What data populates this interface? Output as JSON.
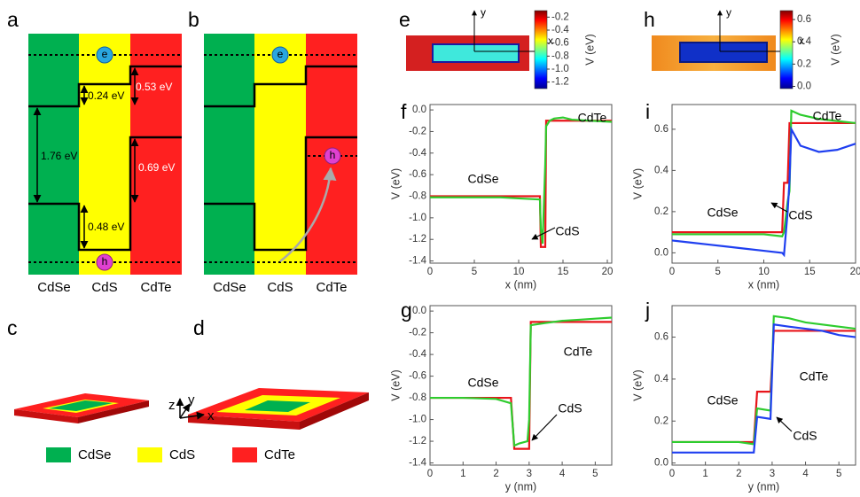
{
  "panel_labels": [
    "a",
    "b",
    "c",
    "d",
    "e",
    "f",
    "g",
    "h",
    "i",
    "j"
  ],
  "band_diagrams": {
    "materials": [
      "CdSe",
      "CdS",
      "CdTe"
    ],
    "electron": "e",
    "hole": "h",
    "energies": [
      "0.24 eV",
      "0.53 eV",
      "1.76 eV",
      "0.69 eV",
      "0.48 eV"
    ]
  },
  "schematic": {
    "axes": [
      "z",
      "y",
      "x"
    ],
    "legend": [
      {
        "label": "CdSe",
        "color": "#00b050"
      },
      {
        "label": "CdS",
        "color": "#ffff00"
      },
      {
        "label": "CdTe",
        "color": "#ff2020"
      }
    ]
  },
  "maps": [
    {
      "x_axis": "x",
      "y_axis": "y",
      "colorbar_label": "V (eV)",
      "clim": [
        -1.3,
        -0.1
      ],
      "colorbar_ticks": [
        -0.2,
        -0.4,
        -0.6,
        -0.8,
        {
          "value": -1,
          "label": "-1.0"
        },
        -1.2
      ]
    },
    {
      "x_axis": "x",
      "y_axis": "y",
      "colorbar_label": "V (eV)",
      "clim": [
        -0.02,
        0.68
      ],
      "colorbar_ticks": [
        0.6,
        0.4,
        0.2,
        {
          "value": 0,
          "label": "0.0"
        }
      ]
    }
  ],
  "chart_data": [
    {
      "type": "line",
      "xlabel": "x (nm)",
      "ylabel": "V (eV)",
      "x": [
        0,
        2,
        4,
        6,
        8,
        10,
        12.4,
        12.5,
        12.7,
        13,
        13.1,
        13.5,
        14,
        15,
        16,
        18,
        20.5
      ],
      "xlim": [
        0,
        20.5
      ],
      "xticks": [
        0,
        5,
        10,
        15,
        20
      ],
      "ylim": [
        -1.42,
        0.05
      ],
      "yticks": [
        {
          "value": 0,
          "label": "0.0"
        },
        -0.2,
        -0.4,
        -0.6,
        -0.8,
        {
          "value": -1,
          "label": "-1.0"
        },
        -1.2,
        -1.4
      ],
      "series": [
        {
          "color": "#e8141a",
          "values": [
            -0.8,
            -0.8,
            -0.8,
            -0.8,
            -0.8,
            -0.8,
            -0.8,
            -1.27,
            -1.27,
            -1.27,
            -0.1,
            -0.1,
            -0.1,
            -0.1,
            -0.1,
            -0.1,
            -0.1
          ]
        },
        {
          "color": "#2ecc2e",
          "values": [
            -0.81,
            -0.81,
            -0.81,
            -0.81,
            -0.81,
            -0.82,
            -0.83,
            -1.1,
            -1.24,
            -0.5,
            -0.15,
            -0.1,
            -0.08,
            -0.07,
            -0.09,
            -0.1,
            -0.11
          ]
        }
      ],
      "annotations": [
        "CdSe",
        "CdTe",
        "CdS"
      ]
    },
    {
      "type": "line",
      "xlabel": "y (nm)",
      "ylabel": "V (eV)",
      "x": [
        0,
        1,
        2,
        2.45,
        2.55,
        2.7,
        2.95,
        3.0,
        3.05,
        3.5,
        4,
        4.5,
        5,
        5.5
      ],
      "xlim": [
        0,
        5.5
      ],
      "xticks": [
        0,
        1,
        2,
        3,
        4,
        5
      ],
      "ylim": [
        -1.42,
        0.05
      ],
      "yticks": [
        {
          "value": 0,
          "label": "0.0"
        },
        -0.2,
        -0.4,
        -0.6,
        -0.8,
        {
          "value": -1,
          "label": "-1.0"
        },
        -1.2,
        -1.4
      ],
      "series": [
        {
          "color": "#e8141a",
          "values": [
            -0.8,
            -0.8,
            -0.8,
            -0.8,
            -1.27,
            -1.27,
            -1.27,
            -1.27,
            -0.1,
            -0.1,
            -0.1,
            -0.1,
            -0.1,
            -0.1
          ]
        },
        {
          "color": "#2ecc2e",
          "values": [
            -0.8,
            -0.8,
            -0.81,
            -0.85,
            -1.24,
            -1.22,
            -1.2,
            -1.0,
            -0.13,
            -0.11,
            -0.09,
            -0.08,
            -0.07,
            -0.06
          ]
        }
      ],
      "annotations": [
        "CdSe",
        "CdTe",
        "CdS"
      ]
    },
    {
      "type": "line",
      "xlabel": "x (nm)",
      "ylabel": "V (eV)",
      "x": [
        0,
        2,
        4,
        6,
        8,
        10,
        12,
        12.2,
        12.6,
        12.8,
        13,
        14,
        16,
        18,
        20
      ],
      "xlim": [
        0,
        20
      ],
      "xticks": [
        0,
        5,
        10,
        15,
        20
      ],
      "ylim": [
        -0.05,
        0.72
      ],
      "yticks": [
        {
          "value": 0,
          "label": "0.0"
        },
        0.2,
        0.4,
        0.6
      ],
      "series": [
        {
          "color": "#e8141a",
          "values": [
            0.1,
            0.1,
            0.1,
            0.1,
            0.1,
            0.1,
            0.1,
            0.34,
            0.34,
            0.63,
            0.63,
            0.63,
            0.63,
            0.63,
            0.63
          ]
        },
        {
          "color": "#2ecc2e",
          "values": [
            0.09,
            0.09,
            0.09,
            0.09,
            0.09,
            0.09,
            0.08,
            0.1,
            0.25,
            0.3,
            0.69,
            0.67,
            0.65,
            0.64,
            0.63
          ]
        },
        {
          "color": "#1f3ff0",
          "values": [
            0.06,
            0.05,
            0.04,
            0.03,
            0.02,
            0.01,
            0.0,
            -0.01,
            0.2,
            0.35,
            0.6,
            0.52,
            0.49,
            0.5,
            0.53
          ]
        }
      ],
      "annotations": [
        "CdSe",
        "CdTe",
        "CdS"
      ]
    },
    {
      "type": "line",
      "xlabel": "y (nm)",
      "ylabel": "V (eV)",
      "x": [
        0,
        1,
        2,
        2.45,
        2.55,
        2.95,
        3.05,
        3.5,
        4,
        4.5,
        5,
        5.5
      ],
      "xlim": [
        0,
        5.5
      ],
      "xticks": [
        0,
        1,
        2,
        3,
        4,
        5
      ],
      "ylim": [
        -0.01,
        0.75
      ],
      "yticks": [
        {
          "value": 0,
          "label": "0.0"
        },
        0.2,
        0.4,
        0.6
      ],
      "series": [
        {
          "color": "#e8141a",
          "values": [
            0.1,
            0.1,
            0.1,
            0.1,
            0.34,
            0.34,
            0.63,
            0.63,
            0.63,
            0.63,
            0.63,
            0.63
          ]
        },
        {
          "color": "#2ecc2e",
          "values": [
            0.1,
            0.1,
            0.1,
            0.09,
            0.26,
            0.25,
            0.7,
            0.69,
            0.67,
            0.66,
            0.65,
            0.64
          ]
        },
        {
          "color": "#1f3ff0",
          "values": [
            0.05,
            0.05,
            0.05,
            0.05,
            0.22,
            0.21,
            0.66,
            0.65,
            0.64,
            0.63,
            0.61,
            0.6
          ]
        }
      ],
      "annotations": [
        "CdSe",
        "CdTe",
        "CdS"
      ]
    }
  ]
}
